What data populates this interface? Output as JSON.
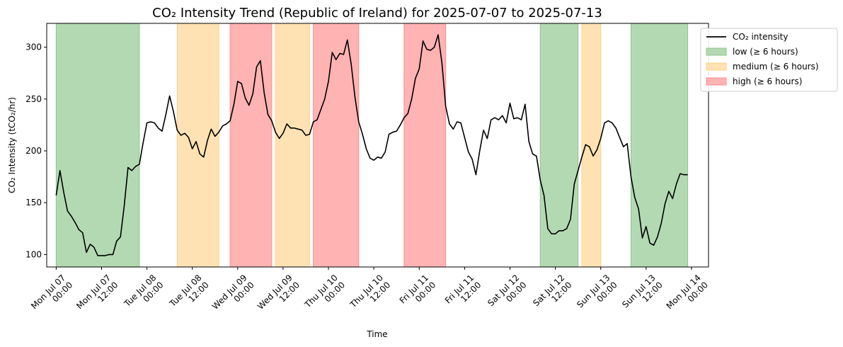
{
  "chart_data": {
    "type": "line",
    "title": "CO₂ Intensity Trend (Republic of Ireland) for 2025-07-07 to 2025-07-13",
    "xlabel": "Time",
    "ylabel": "CO₂ Intensity (tCO₂/hr)",
    "ylim": [
      88,
      323
    ],
    "xlim": [
      "2025-07-06 21:30",
      "2025-07-14 04:30"
    ],
    "grid": false,
    "legend_placement": "top-right-outside",
    "line_color": "#000000",
    "x_ticks": [
      {
        "time": "2025-07-07 00:00",
        "line1": "Mon Jul 07",
        "line2": "00:00"
      },
      {
        "time": "2025-07-07 12:00",
        "line1": "Mon Jul 07",
        "line2": "12:00"
      },
      {
        "time": "2025-07-08 00:00",
        "line1": "Tue Jul 08",
        "line2": "00:00"
      },
      {
        "time": "2025-07-08 12:00",
        "line1": "Tue Jul 08",
        "line2": "12:00"
      },
      {
        "time": "2025-07-09 00:00",
        "line1": "Wed Jul 09",
        "line2": "00:00"
      },
      {
        "time": "2025-07-09 12:00",
        "line1": "Wed Jul 09",
        "line2": "12:00"
      },
      {
        "time": "2025-07-10 00:00",
        "line1": "Thu Jul 10",
        "line2": "00:00"
      },
      {
        "time": "2025-07-10 12:00",
        "line1": "Thu Jul 10",
        "line2": "12:00"
      },
      {
        "time": "2025-07-11 00:00",
        "line1": "Fri Jul 11",
        "line2": "00:00"
      },
      {
        "time": "2025-07-11 12:00",
        "line1": "Fri Jul 11",
        "line2": "12:00"
      },
      {
        "time": "2025-07-12 00:00",
        "line1": "Sat Jul 12",
        "line2": "00:00"
      },
      {
        "time": "2025-07-12 12:00",
        "line1": "Sat Jul 12",
        "line2": "12:00"
      },
      {
        "time": "2025-07-13 00:00",
        "line1": "Sun Jul 13",
        "line2": "00:00"
      },
      {
        "time": "2025-07-13 12:00",
        "line1": "Sun Jul 13",
        "line2": "12:00"
      },
      {
        "time": "2025-07-14 00:00",
        "line1": "Mon Jul 14",
        "line2": "00:00"
      }
    ],
    "y_ticks": [
      100,
      150,
      200,
      250,
      300
    ],
    "legend": [
      {
        "label": "CO₂ intensity",
        "kind": "line",
        "color": "#000000"
      },
      {
        "label": "low (≥ 6 hours)",
        "kind": "patch",
        "color": "#b3d9b3",
        "edge": "#8cc58c"
      },
      {
        "label": "medium (≥ 6 hours)",
        "kind": "patch",
        "color": "#fee2b3",
        "edge": "#fdd08c"
      },
      {
        "label": "high (≥ 6 hours)",
        "kind": "patch",
        "color": "#ffb3b3",
        "edge": "#ff8c8c"
      }
    ],
    "bands": [
      {
        "level": "low",
        "start": "2025-07-07 00:00",
        "end": "2025-07-07 22:00"
      },
      {
        "level": "medium",
        "start": "2025-07-08 08:00",
        "end": "2025-07-08 19:00"
      },
      {
        "level": "high",
        "start": "2025-07-08 22:00",
        "end": "2025-07-09 09:00"
      },
      {
        "level": "medium",
        "start": "2025-07-09 10:00",
        "end": "2025-07-09 19:00"
      },
      {
        "level": "high",
        "start": "2025-07-09 20:00",
        "end": "2025-07-10 08:00"
      },
      {
        "level": "high",
        "start": "2025-07-10 20:00",
        "end": "2025-07-11 07:00"
      },
      {
        "level": "low",
        "start": "2025-07-12 08:00",
        "end": "2025-07-12 18:00"
      },
      {
        "level": "medium",
        "start": "2025-07-12 19:00",
        "end": "2025-07-13 00:00"
      },
      {
        "level": "low",
        "start": "2025-07-13 08:00",
        "end": "2025-07-13 23:00"
      }
    ],
    "series": [
      {
        "points": [
          [
            "2025-07-07 00:00",
            157
          ],
          [
            "2025-07-07 01:00",
            181
          ],
          [
            "2025-07-07 02:00",
            160
          ],
          [
            "2025-07-07 03:00",
            142
          ],
          [
            "2025-07-07 04:00",
            137
          ],
          [
            "2025-07-07 05:00",
            131
          ],
          [
            "2025-07-07 06:00",
            124
          ],
          [
            "2025-07-07 07:00",
            121
          ],
          [
            "2025-07-07 08:00",
            102
          ],
          [
            "2025-07-07 09:00",
            110
          ],
          [
            "2025-07-07 10:00",
            107
          ],
          [
            "2025-07-07 11:00",
            99
          ],
          [
            "2025-07-07 12:00",
            99
          ],
          [
            "2025-07-07 13:00",
            99
          ],
          [
            "2025-07-07 14:00",
            100
          ],
          [
            "2025-07-07 15:00",
            100
          ],
          [
            "2025-07-07 16:00",
            113
          ],
          [
            "2025-07-07 17:00",
            117
          ],
          [
            "2025-07-07 18:00",
            147
          ],
          [
            "2025-07-07 19:00",
            184
          ],
          [
            "2025-07-07 20:00",
            181
          ],
          [
            "2025-07-07 21:00",
            185
          ],
          [
            "2025-07-07 22:00",
            187
          ],
          [
            "2025-07-07 23:00",
            208
          ],
          [
            "2025-07-08 00:00",
            227
          ],
          [
            "2025-07-08 01:00",
            228
          ],
          [
            "2025-07-08 02:00",
            227
          ],
          [
            "2025-07-08 03:00",
            222
          ],
          [
            "2025-07-08 04:00",
            219
          ],
          [
            "2025-07-08 05:00",
            235
          ],
          [
            "2025-07-08 06:00",
            253
          ],
          [
            "2025-07-08 07:00",
            238
          ],
          [
            "2025-07-08 08:00",
            220
          ],
          [
            "2025-07-08 09:00",
            215
          ],
          [
            "2025-07-08 10:00",
            217
          ],
          [
            "2025-07-08 11:00",
            213
          ],
          [
            "2025-07-08 12:00",
            202
          ],
          [
            "2025-07-08 13:00",
            209
          ],
          [
            "2025-07-08 14:00",
            197
          ],
          [
            "2025-07-08 15:00",
            194
          ],
          [
            "2025-07-08 16:00",
            210
          ],
          [
            "2025-07-08 17:00",
            221
          ],
          [
            "2025-07-08 18:00",
            214
          ],
          [
            "2025-07-08 19:00",
            218
          ],
          [
            "2025-07-08 20:00",
            224
          ],
          [
            "2025-07-08 21:00",
            226
          ],
          [
            "2025-07-08 22:00",
            229
          ],
          [
            "2025-07-08 23:00",
            245
          ],
          [
            "2025-07-09 00:00",
            267
          ],
          [
            "2025-07-09 01:00",
            265
          ],
          [
            "2025-07-09 02:00",
            251
          ],
          [
            "2025-07-09 03:00",
            244
          ],
          [
            "2025-07-09 04:00",
            255
          ],
          [
            "2025-07-09 05:00",
            281
          ],
          [
            "2025-07-09 06:00",
            287
          ],
          [
            "2025-07-09 07:00",
            256
          ],
          [
            "2025-07-09 08:00",
            235
          ],
          [
            "2025-07-09 09:00",
            229
          ],
          [
            "2025-07-09 10:00",
            218
          ],
          [
            "2025-07-09 11:00",
            212
          ],
          [
            "2025-07-09 12:00",
            217
          ],
          [
            "2025-07-09 13:00",
            226
          ],
          [
            "2025-07-09 14:00",
            222
          ],
          [
            "2025-07-09 15:00",
            222
          ],
          [
            "2025-07-09 16:00",
            221
          ],
          [
            "2025-07-09 17:00",
            220
          ],
          [
            "2025-07-09 18:00",
            215
          ],
          [
            "2025-07-09 19:00",
            216
          ],
          [
            "2025-07-09 20:00",
            228
          ],
          [
            "2025-07-09 21:00",
            230
          ],
          [
            "2025-07-09 22:00",
            240
          ],
          [
            "2025-07-09 23:00",
            250
          ],
          [
            "2025-07-10 00:00",
            267
          ],
          [
            "2025-07-10 01:00",
            295
          ],
          [
            "2025-07-10 02:00",
            288
          ],
          [
            "2025-07-10 03:00",
            294
          ],
          [
            "2025-07-10 04:00",
            293
          ],
          [
            "2025-07-10 05:00",
            307
          ],
          [
            "2025-07-10 06:00",
            284
          ],
          [
            "2025-07-10 07:00",
            252
          ],
          [
            "2025-07-10 08:00",
            228
          ],
          [
            "2025-07-10 09:00",
            216
          ],
          [
            "2025-07-10 10:00",
            202
          ],
          [
            "2025-07-10 11:00",
            193
          ],
          [
            "2025-07-10 12:00",
            191
          ],
          [
            "2025-07-10 13:00",
            194
          ],
          [
            "2025-07-10 14:00",
            193
          ],
          [
            "2025-07-10 15:00",
            199
          ],
          [
            "2025-07-10 16:00",
            216
          ],
          [
            "2025-07-10 17:00",
            218
          ],
          [
            "2025-07-10 18:00",
            219
          ],
          [
            "2025-07-10 19:00",
            225
          ],
          [
            "2025-07-10 20:00",
            232
          ],
          [
            "2025-07-10 21:00",
            236
          ],
          [
            "2025-07-10 22:00",
            250
          ],
          [
            "2025-07-10 23:00",
            270
          ],
          [
            "2025-07-11 00:00",
            279
          ],
          [
            "2025-07-11 01:00",
            306
          ],
          [
            "2025-07-11 02:00",
            298
          ],
          [
            "2025-07-11 03:00",
            297
          ],
          [
            "2025-07-11 04:00",
            300
          ],
          [
            "2025-07-11 05:00",
            312
          ],
          [
            "2025-07-11 06:00",
            285
          ],
          [
            "2025-07-11 07:00",
            243
          ],
          [
            "2025-07-11 08:00",
            226
          ],
          [
            "2025-07-11 09:00",
            221
          ],
          [
            "2025-07-11 10:00",
            228
          ],
          [
            "2025-07-11 11:00",
            227
          ],
          [
            "2025-07-11 12:00",
            213
          ],
          [
            "2025-07-11 13:00",
            199
          ],
          [
            "2025-07-11 14:00",
            192
          ],
          [
            "2025-07-11 15:00",
            177
          ],
          [
            "2025-07-11 16:00",
            200
          ],
          [
            "2025-07-11 17:00",
            220
          ],
          [
            "2025-07-11 18:00",
            212
          ],
          [
            "2025-07-11 19:00",
            230
          ],
          [
            "2025-07-11 20:00",
            232
          ],
          [
            "2025-07-11 21:00",
            230
          ],
          [
            "2025-07-11 22:00",
            234
          ],
          [
            "2025-07-11 23:00",
            227
          ],
          [
            "2025-07-12 00:00",
            246
          ],
          [
            "2025-07-12 01:00",
            231
          ],
          [
            "2025-07-12 02:00",
            232
          ],
          [
            "2025-07-12 03:00",
            230
          ],
          [
            "2025-07-12 04:00",
            245
          ],
          [
            "2025-07-12 05:00",
            209
          ],
          [
            "2025-07-12 06:00",
            197
          ],
          [
            "2025-07-12 07:00",
            195
          ],
          [
            "2025-07-12 08:00",
            172
          ],
          [
            "2025-07-12 09:00",
            157
          ],
          [
            "2025-07-12 10:00",
            125
          ],
          [
            "2025-07-12 11:00",
            120
          ],
          [
            "2025-07-12 12:00",
            120
          ],
          [
            "2025-07-12 13:00",
            123
          ],
          [
            "2025-07-12 14:00",
            123
          ],
          [
            "2025-07-12 15:00",
            125
          ],
          [
            "2025-07-12 16:00",
            134
          ],
          [
            "2025-07-12 17:00",
            168
          ],
          [
            "2025-07-12 18:00",
            181
          ],
          [
            "2025-07-12 19:00",
            194
          ],
          [
            "2025-07-12 20:00",
            206
          ],
          [
            "2025-07-12 21:00",
            204
          ],
          [
            "2025-07-12 22:00",
            195
          ],
          [
            "2025-07-12 23:00",
            201
          ],
          [
            "2025-07-13 00:00",
            212
          ],
          [
            "2025-07-13 01:00",
            227
          ],
          [
            "2025-07-13 02:00",
            229
          ],
          [
            "2025-07-13 03:00",
            227
          ],
          [
            "2025-07-13 04:00",
            222
          ],
          [
            "2025-07-13 05:00",
            213
          ],
          [
            "2025-07-13 06:00",
            204
          ],
          [
            "2025-07-13 07:00",
            207
          ],
          [
            "2025-07-13 08:00",
            175
          ],
          [
            "2025-07-13 09:00",
            155
          ],
          [
            "2025-07-13 10:00",
            144
          ],
          [
            "2025-07-13 11:00",
            116
          ],
          [
            "2025-07-13 12:00",
            127
          ],
          [
            "2025-07-13 13:00",
            111
          ],
          [
            "2025-07-13 14:00",
            109
          ],
          [
            "2025-07-13 15:00",
            117
          ],
          [
            "2025-07-13 16:00",
            130
          ],
          [
            "2025-07-13 17:00",
            149
          ],
          [
            "2025-07-13 18:00",
            161
          ],
          [
            "2025-07-13 19:00",
            154
          ],
          [
            "2025-07-13 20:00",
            168
          ],
          [
            "2025-07-13 21:00",
            178
          ],
          [
            "2025-07-13 22:00",
            177
          ],
          [
            "2025-07-13 23:00",
            177
          ]
        ]
      }
    ]
  }
}
